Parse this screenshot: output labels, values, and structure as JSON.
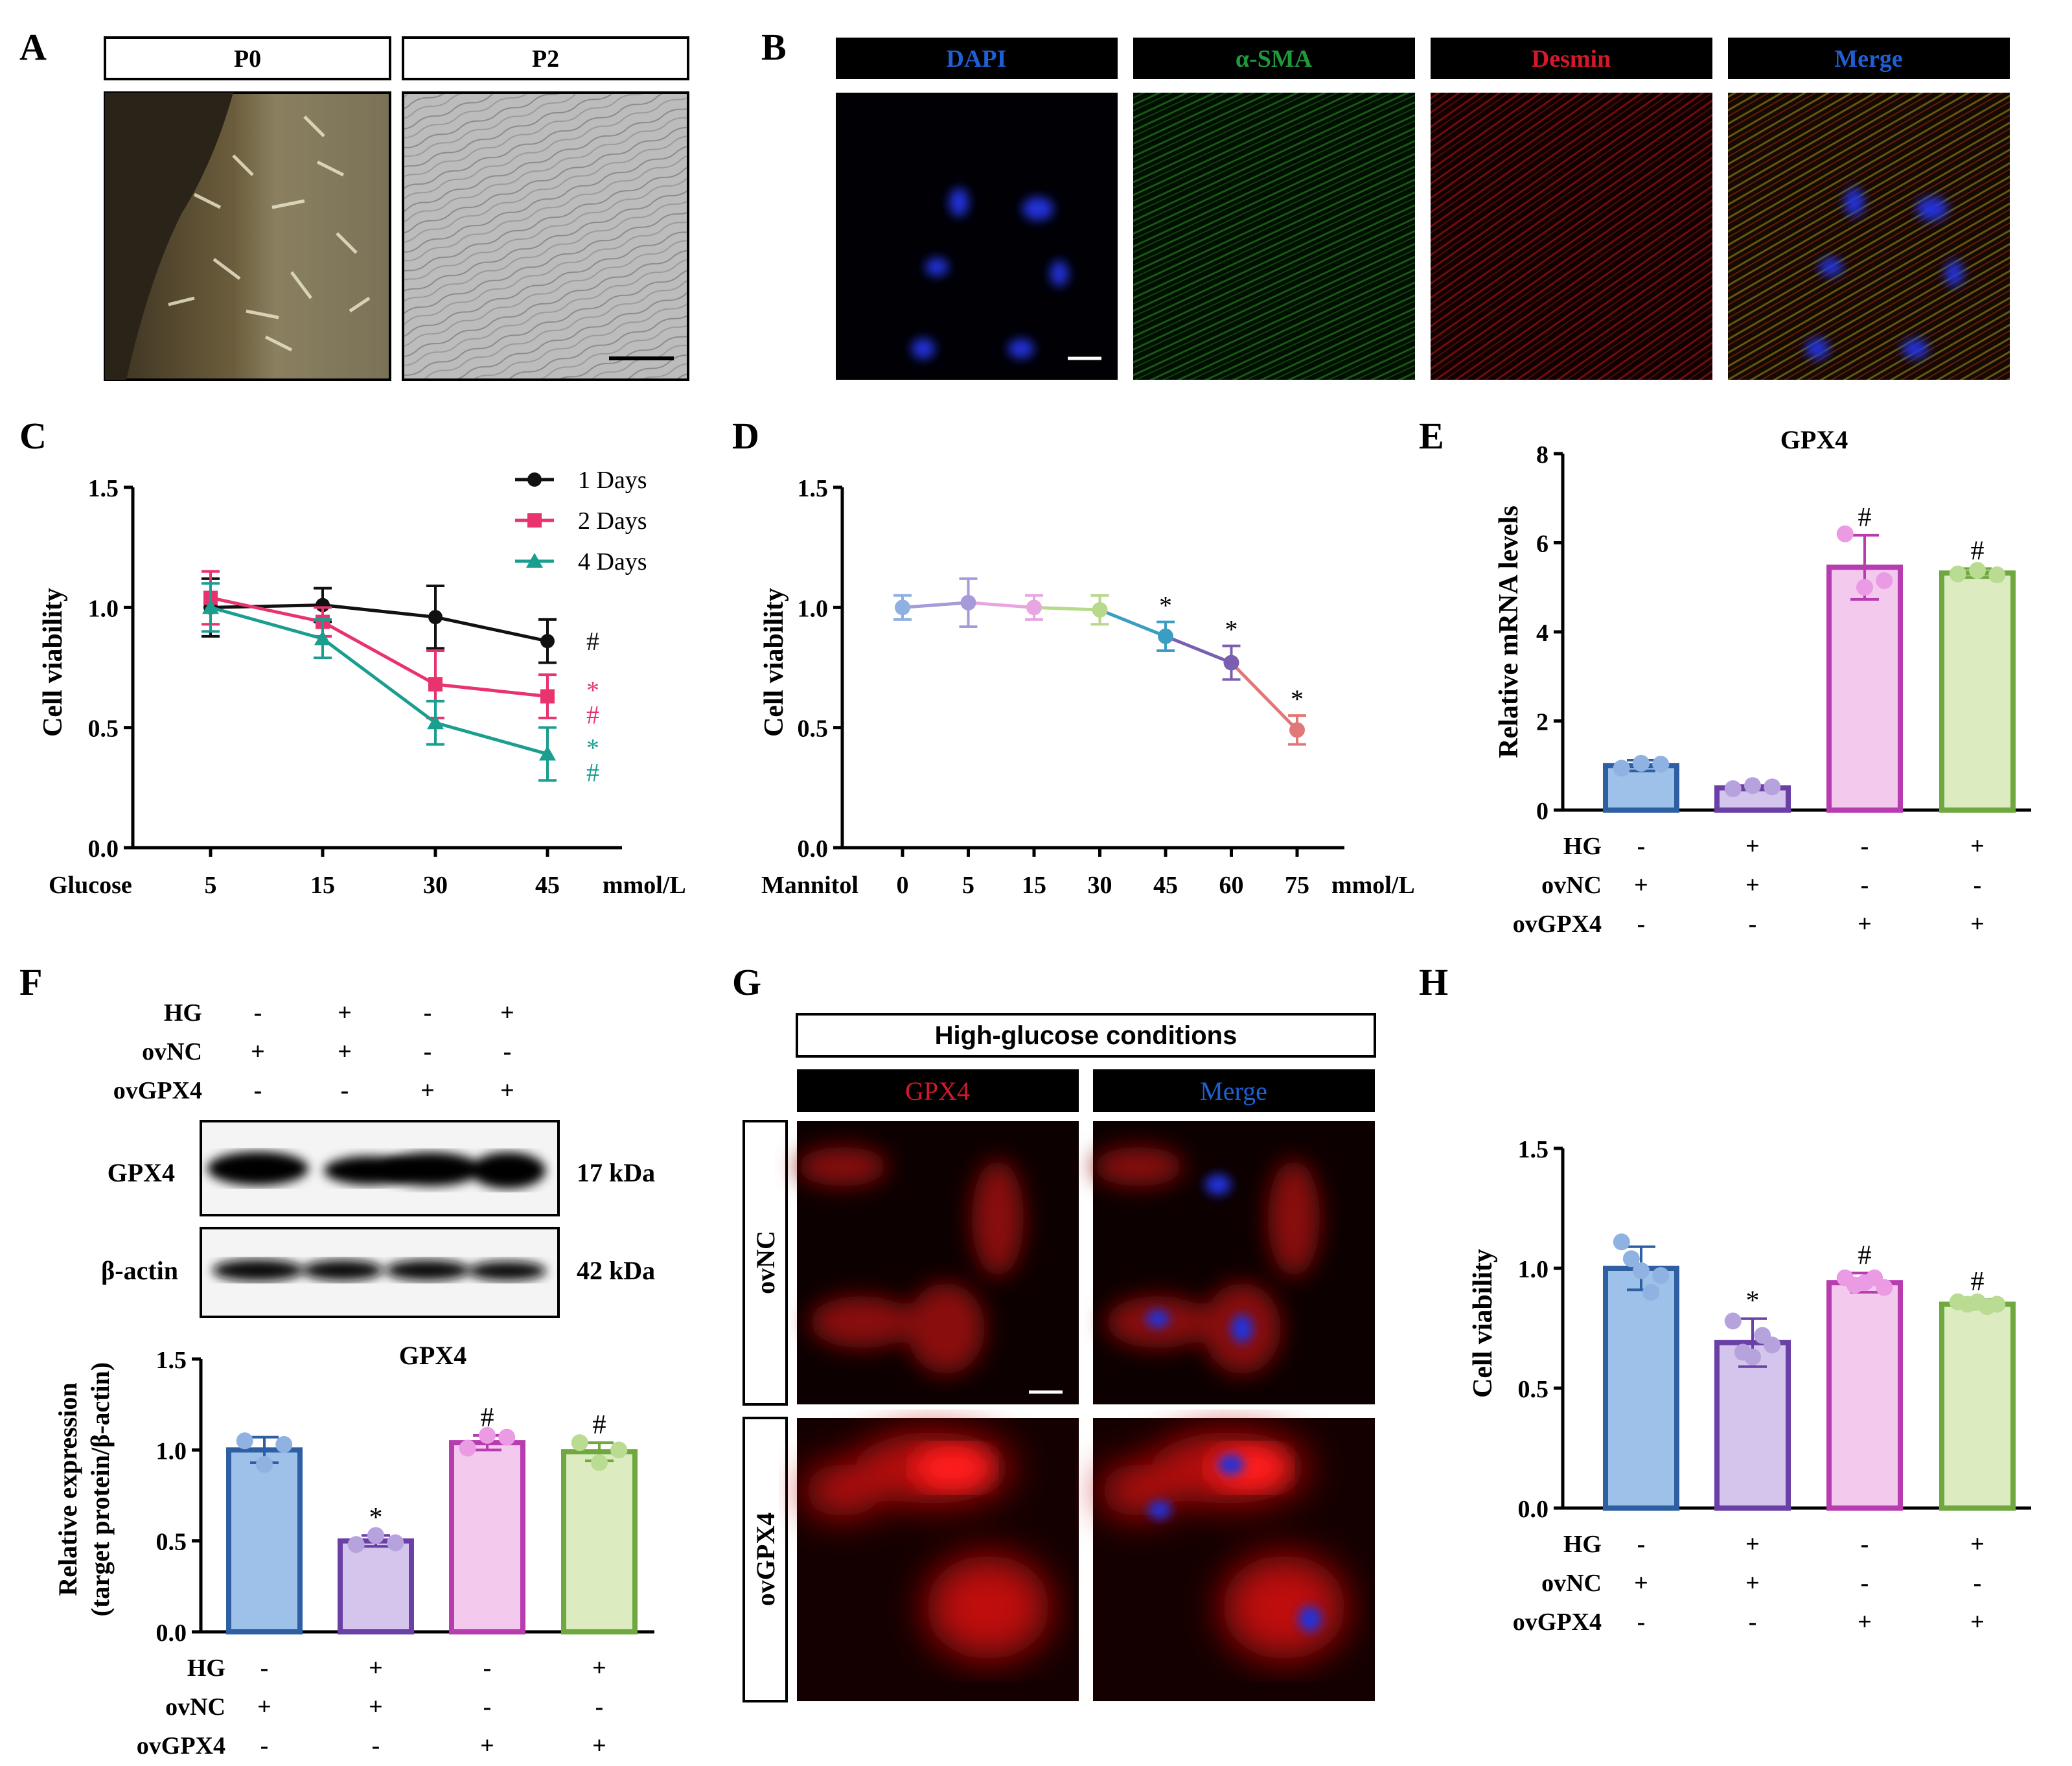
{
  "panel_letters": [
    "A",
    "B",
    "C",
    "D",
    "E",
    "F",
    "G",
    "H"
  ],
  "panelA": {
    "labels": [
      "P0",
      "P2"
    ]
  },
  "panelB": {
    "labels": [
      "DAPI",
      "α-SMA",
      "Desmin",
      "Merge"
    ],
    "label_colors": [
      "#1f5fd6",
      "#1f9a3a",
      "#d4192c",
      "#1f5fd6"
    ]
  },
  "colors": {
    "black": "#111111",
    "pink": "#e8336e",
    "teal": "#1a9e8f",
    "blue": "#9ec1ea",
    "purple": "#d3c5ec",
    "pinkbar": "#f4c9ee",
    "green": "#dcecc0",
    "blue_edge": "#2e5fa3",
    "purple_edge": "#6a3fa6",
    "pink_edge": "#b63cb0",
    "green_edge": "#6fa83f"
  },
  "condition_table": {
    "rows": [
      {
        "label": "HG",
        "values": [
          "-",
          "+",
          "-",
          "+"
        ]
      },
      {
        "label": "ovNC",
        "values": [
          "+",
          "+",
          "-",
          "-"
        ]
      },
      {
        "label": "ovGPX4",
        "values": [
          "-",
          "-",
          "+",
          "+"
        ]
      }
    ]
  },
  "chart_data": [
    {
      "id": "C",
      "type": "line",
      "xlabel_left": "Glucose",
      "xunit": "mmol/L",
      "ylabel": "Cell viability",
      "x": [
        5,
        15,
        30,
        45
      ],
      "ylim": [
        0.0,
        1.5
      ],
      "yticks": [
        "0.0",
        "0.5",
        "1.0",
        "1.5"
      ],
      "series": [
        {
          "name": "1 Days",
          "color": "#111111",
          "marker": "circle",
          "values": [
            1.0,
            1.01,
            0.96,
            0.86
          ],
          "err": [
            0.12,
            0.07,
            0.13,
            0.09
          ],
          "marks": [
            "#"
          ]
        },
        {
          "name": "2 Days",
          "color": "#e8336e",
          "marker": "square",
          "values": [
            1.04,
            0.94,
            0.68,
            0.63
          ],
          "err": [
            0.11,
            0.06,
            0.14,
            0.09
          ],
          "marks": [
            "*",
            "#"
          ]
        },
        {
          "name": "4 Days",
          "color": "#1a9e8f",
          "marker": "triangle",
          "values": [
            1.0,
            0.87,
            0.52,
            0.39
          ],
          "err": [
            0.1,
            0.08,
            0.09,
            0.11
          ],
          "marks": [
            "*",
            "#"
          ]
        }
      ]
    },
    {
      "id": "D",
      "type": "line",
      "xlabel_left": "Mannitol",
      "xunit": "mmol/L",
      "ylabel": "Cell viability",
      "categories": [
        "0",
        "5",
        "15",
        "30",
        "45",
        "60",
        "75"
      ],
      "ylim": [
        0.0,
        1.5
      ],
      "yticks": [
        "0.0",
        "0.5",
        "1.0",
        "1.5"
      ],
      "values": [
        1.0,
        1.02,
        1.0,
        0.99,
        0.88,
        0.77,
        0.49
      ],
      "err": [
        0.05,
        0.1,
        0.05,
        0.06,
        0.06,
        0.07,
        0.06
      ],
      "point_colors": [
        "#8fb0e0",
        "#a79ad8",
        "#e8a6e0",
        "#b6d98c",
        "#3a9ec2",
        "#7a5fb0",
        "#e07878"
      ],
      "marks": [
        "",
        "",
        "",
        "",
        "*",
        "*",
        "*"
      ]
    },
    {
      "id": "E",
      "type": "bar",
      "title": "GPX4",
      "ylabel": "Relative mRNA levels",
      "ylim": [
        0,
        8
      ],
      "yticks": [
        "0",
        "2",
        "4",
        "6",
        "8"
      ],
      "values": [
        1.0,
        0.5,
        5.45,
        5.32
      ],
      "err": [
        0.12,
        0.05,
        0.72,
        0.1
      ],
      "points": [
        [
          0.94,
          1.05,
          1.03
        ],
        [
          0.48,
          0.55,
          0.52
        ],
        [
          6.2,
          5.0,
          5.15
        ],
        [
          5.3,
          5.38,
          5.28
        ]
      ],
      "marks": [
        "",
        "",
        "#",
        "#"
      ]
    },
    {
      "id": "F",
      "type": "bar",
      "title": "GPX4",
      "ylabel": [
        "Relative expression",
        "(target protein/β-actin)"
      ],
      "ylim": [
        0,
        1.5
      ],
      "yticks": [
        "0.0",
        "0.5",
        "1.0",
        "1.5"
      ],
      "values": [
        1.0,
        0.5,
        1.04,
        0.99
      ],
      "err": [
        0.07,
        0.03,
        0.04,
        0.05
      ],
      "points": [
        [
          1.05,
          0.92,
          1.03
        ],
        [
          0.48,
          0.53,
          0.49
        ],
        [
          1.01,
          1.08,
          1.07
        ],
        [
          1.04,
          0.93,
          1.0
        ]
      ],
      "marks": [
        "",
        "*",
        "#",
        "#"
      ]
    },
    {
      "id": "H",
      "type": "bar",
      "ylabel": "Cell viability",
      "ylim": [
        0,
        1.5
      ],
      "yticks": [
        "0.0",
        "0.5",
        "1.0",
        "1.5"
      ],
      "values": [
        1.0,
        0.69,
        0.94,
        0.85
      ],
      "err": [
        0.09,
        0.1,
        0.04,
        0.02
      ],
      "points": [
        [
          1.11,
          1.04,
          0.99,
          0.9,
          0.97
        ],
        [
          0.78,
          0.65,
          0.63,
          0.72,
          0.68
        ],
        [
          0.96,
          0.93,
          0.94,
          0.96,
          0.92
        ],
        [
          0.86,
          0.85,
          0.86,
          0.84,
          0.85
        ]
      ],
      "marks": [
        "",
        "*",
        "#",
        "#"
      ]
    }
  ],
  "blot": {
    "bands": [
      {
        "label": "GPX4",
        "size": "17 kDa"
      },
      {
        "label": "β-actin",
        "size": "42 kDa"
      }
    ]
  },
  "panelG": {
    "header": "High-glucose conditions",
    "columns": [
      "GPX4",
      "Merge"
    ],
    "column_colors": [
      "#d4192c",
      "#1f5fd6"
    ],
    "rows": [
      "ovNC",
      "ovGPX4"
    ]
  }
}
